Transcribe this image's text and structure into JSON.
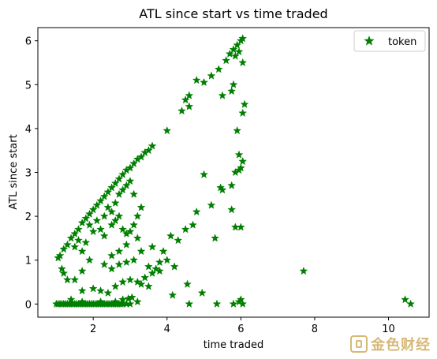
{
  "chart_data": {
    "type": "scatter",
    "title": "ATL since start vs time traded",
    "xlabel": "time traded",
    "ylabel": "ATL since start",
    "xlim": [
      0.5,
      11.1
    ],
    "ylim": [
      -0.3,
      6.3
    ],
    "xticks": [
      2,
      4,
      6,
      8,
      10
    ],
    "yticks": [
      0,
      1,
      2,
      3,
      4,
      5,
      6
    ],
    "grid": false,
    "legend_position": "upper right",
    "marker": "star",
    "series": [
      {
        "name": "token",
        "color": "#007f00",
        "points": [
          [
            1.0,
            0.0
          ],
          [
            1.05,
            0.0
          ],
          [
            1.1,
            0.0
          ],
          [
            1.15,
            0.0
          ],
          [
            1.2,
            0.0
          ],
          [
            1.25,
            0.0
          ],
          [
            1.3,
            0.0
          ],
          [
            1.35,
            0.0
          ],
          [
            1.4,
            0.0
          ],
          [
            1.45,
            0.0
          ],
          [
            1.5,
            0.0
          ],
          [
            1.55,
            0.0
          ],
          [
            1.6,
            0.0
          ],
          [
            1.65,
            0.0
          ],
          [
            1.7,
            0.0
          ],
          [
            1.75,
            0.0
          ],
          [
            1.8,
            0.0
          ],
          [
            1.85,
            0.0
          ],
          [
            1.9,
            0.0
          ],
          [
            1.95,
            0.0
          ],
          [
            2.0,
            0.0
          ],
          [
            2.05,
            0.0
          ],
          [
            2.1,
            0.0
          ],
          [
            2.15,
            0.0
          ],
          [
            2.2,
            0.0
          ],
          [
            2.25,
            0.0
          ],
          [
            2.3,
            0.0
          ],
          [
            2.35,
            0.0
          ],
          [
            2.4,
            0.0
          ],
          [
            2.45,
            0.0
          ],
          [
            2.5,
            0.0
          ],
          [
            2.55,
            0.0
          ],
          [
            2.6,
            0.0
          ],
          [
            2.65,
            0.0
          ],
          [
            2.7,
            0.0
          ],
          [
            2.75,
            0.0
          ],
          [
            2.8,
            0.0
          ],
          [
            2.9,
            0.0
          ],
          [
            3.0,
            0.0
          ],
          [
            1.4,
            0.1
          ],
          [
            1.7,
            0.05
          ],
          [
            2.2,
            0.05
          ],
          [
            2.6,
            0.05
          ],
          [
            2.8,
            0.1
          ],
          [
            2.95,
            0.12
          ],
          [
            3.05,
            0.15
          ],
          [
            1.05,
            1.05
          ],
          [
            1.1,
            1.1
          ],
          [
            1.2,
            1.25
          ],
          [
            1.3,
            1.35
          ],
          [
            1.4,
            1.5
          ],
          [
            1.5,
            1.6
          ],
          [
            1.6,
            1.7
          ],
          [
            1.7,
            1.85
          ],
          [
            1.8,
            1.95
          ],
          [
            1.9,
            2.05
          ],
          [
            2.0,
            2.15
          ],
          [
            2.1,
            2.25
          ],
          [
            2.2,
            2.35
          ],
          [
            2.3,
            2.45
          ],
          [
            2.4,
            2.55
          ],
          [
            2.5,
            2.65
          ],
          [
            2.6,
            2.75
          ],
          [
            2.7,
            2.85
          ],
          [
            2.8,
            2.95
          ],
          [
            2.9,
            3.05
          ],
          [
            3.0,
            3.1
          ],
          [
            3.1,
            3.2
          ],
          [
            3.2,
            3.3
          ],
          [
            3.3,
            3.35
          ],
          [
            3.4,
            3.45
          ],
          [
            3.5,
            3.5
          ],
          [
            3.6,
            3.6
          ],
          [
            1.15,
            0.8
          ],
          [
            1.2,
            0.7
          ],
          [
            1.3,
            0.55
          ],
          [
            1.5,
            1.3
          ],
          [
            1.6,
            1.45
          ],
          [
            1.7,
            1.2
          ],
          [
            1.8,
            1.4
          ],
          [
            1.9,
            1.8
          ],
          [
            2.0,
            1.65
          ],
          [
            2.1,
            1.9
          ],
          [
            2.2,
            1.7
          ],
          [
            2.3,
            2.0
          ],
          [
            2.4,
            2.2
          ],
          [
            2.5,
            2.1
          ],
          [
            2.6,
            2.3
          ],
          [
            2.7,
            2.5
          ],
          [
            2.8,
            2.6
          ],
          [
            2.9,
            2.7
          ],
          [
            3.0,
            2.8
          ],
          [
            3.1,
            2.5
          ],
          [
            2.3,
            1.55
          ],
          [
            2.5,
            1.8
          ],
          [
            2.6,
            1.9
          ],
          [
            2.7,
            2.0
          ],
          [
            2.8,
            1.7
          ],
          [
            2.9,
            1.6
          ],
          [
            3.0,
            1.65
          ],
          [
            3.1,
            1.8
          ],
          [
            3.2,
            2.0
          ],
          [
            3.3,
            2.2
          ],
          [
            1.5,
            0.55
          ],
          [
            1.7,
            0.3
          ],
          [
            2.0,
            0.35
          ],
          [
            2.2,
            0.3
          ],
          [
            2.4,
            0.25
          ],
          [
            2.6,
            0.4
          ],
          [
            2.8,
            0.5
          ],
          [
            3.0,
            0.55
          ],
          [
            3.2,
            0.5
          ],
          [
            3.3,
            0.45
          ],
          [
            3.4,
            0.6
          ],
          [
            1.7,
            0.75
          ],
          [
            1.9,
            1.0
          ],
          [
            2.3,
            0.9
          ],
          [
            2.5,
            0.8
          ],
          [
            2.7,
            0.9
          ],
          [
            2.9,
            0.95
          ],
          [
            3.1,
            1.0
          ],
          [
            3.3,
            1.2
          ],
          [
            3.5,
            0.85
          ],
          [
            3.7,
            0.8
          ],
          [
            3.8,
            0.95
          ],
          [
            2.5,
            1.1
          ],
          [
            2.7,
            1.2
          ],
          [
            2.9,
            1.35
          ],
          [
            3.2,
            1.5
          ],
          [
            3.6,
            1.3
          ],
          [
            3.9,
            1.2
          ],
          [
            4.1,
            1.55
          ],
          [
            4.3,
            1.45
          ],
          [
            4.5,
            1.7
          ],
          [
            4.7,
            1.8
          ],
          [
            4.0,
            3.95
          ],
          [
            4.4,
            4.4
          ],
          [
            4.6,
            4.75
          ],
          [
            4.8,
            5.1
          ],
          [
            5.0,
            5.05
          ],
          [
            5.2,
            5.2
          ],
          [
            5.4,
            5.35
          ],
          [
            5.6,
            5.55
          ],
          [
            5.7,
            5.7
          ],
          [
            5.8,
            5.8
          ],
          [
            5.9,
            5.9
          ],
          [
            6.0,
            6.0
          ],
          [
            6.05,
            6.05
          ],
          [
            5.85,
            5.65
          ],
          [
            5.95,
            5.75
          ],
          [
            6.05,
            5.5
          ],
          [
            4.6,
            4.5
          ],
          [
            4.5,
            4.65
          ],
          [
            5.5,
            4.75
          ],
          [
            5.75,
            4.85
          ],
          [
            5.8,
            5.0
          ],
          [
            6.1,
            4.55
          ],
          [
            6.05,
            4.35
          ],
          [
            5.9,
            3.95
          ],
          [
            5.95,
            3.4
          ],
          [
            5.95,
            3.05
          ],
          [
            6.05,
            3.25
          ],
          [
            6.0,
            3.1
          ],
          [
            5.85,
            3.0
          ],
          [
            5.75,
            2.7
          ],
          [
            5.5,
            2.6
          ],
          [
            5.45,
            2.65
          ],
          [
            5.2,
            2.25
          ],
          [
            5.0,
            2.95
          ],
          [
            4.8,
            2.1
          ],
          [
            5.75,
            2.15
          ],
          [
            5.85,
            1.75
          ],
          [
            6.0,
            1.75
          ],
          [
            5.3,
            1.5
          ],
          [
            4.55,
            0.45
          ],
          [
            4.2,
            0.85
          ],
          [
            4.0,
            1.0
          ],
          [
            3.8,
            0.75
          ],
          [
            3.6,
            0.7
          ],
          [
            3.2,
            0.05
          ],
          [
            3.5,
            0.4
          ],
          [
            4.15,
            0.2
          ],
          [
            4.6,
            0.0
          ],
          [
            4.95,
            0.25
          ],
          [
            5.35,
            0.0
          ],
          [
            5.8,
            0.0
          ],
          [
            5.95,
            0.05
          ],
          [
            6.0,
            0.1
          ],
          [
            6.05,
            0.0
          ],
          [
            7.7,
            0.75
          ],
          [
            10.45,
            0.1
          ],
          [
            10.6,
            0.0
          ]
        ]
      }
    ]
  },
  "watermark": {
    "text": "金色财经"
  }
}
